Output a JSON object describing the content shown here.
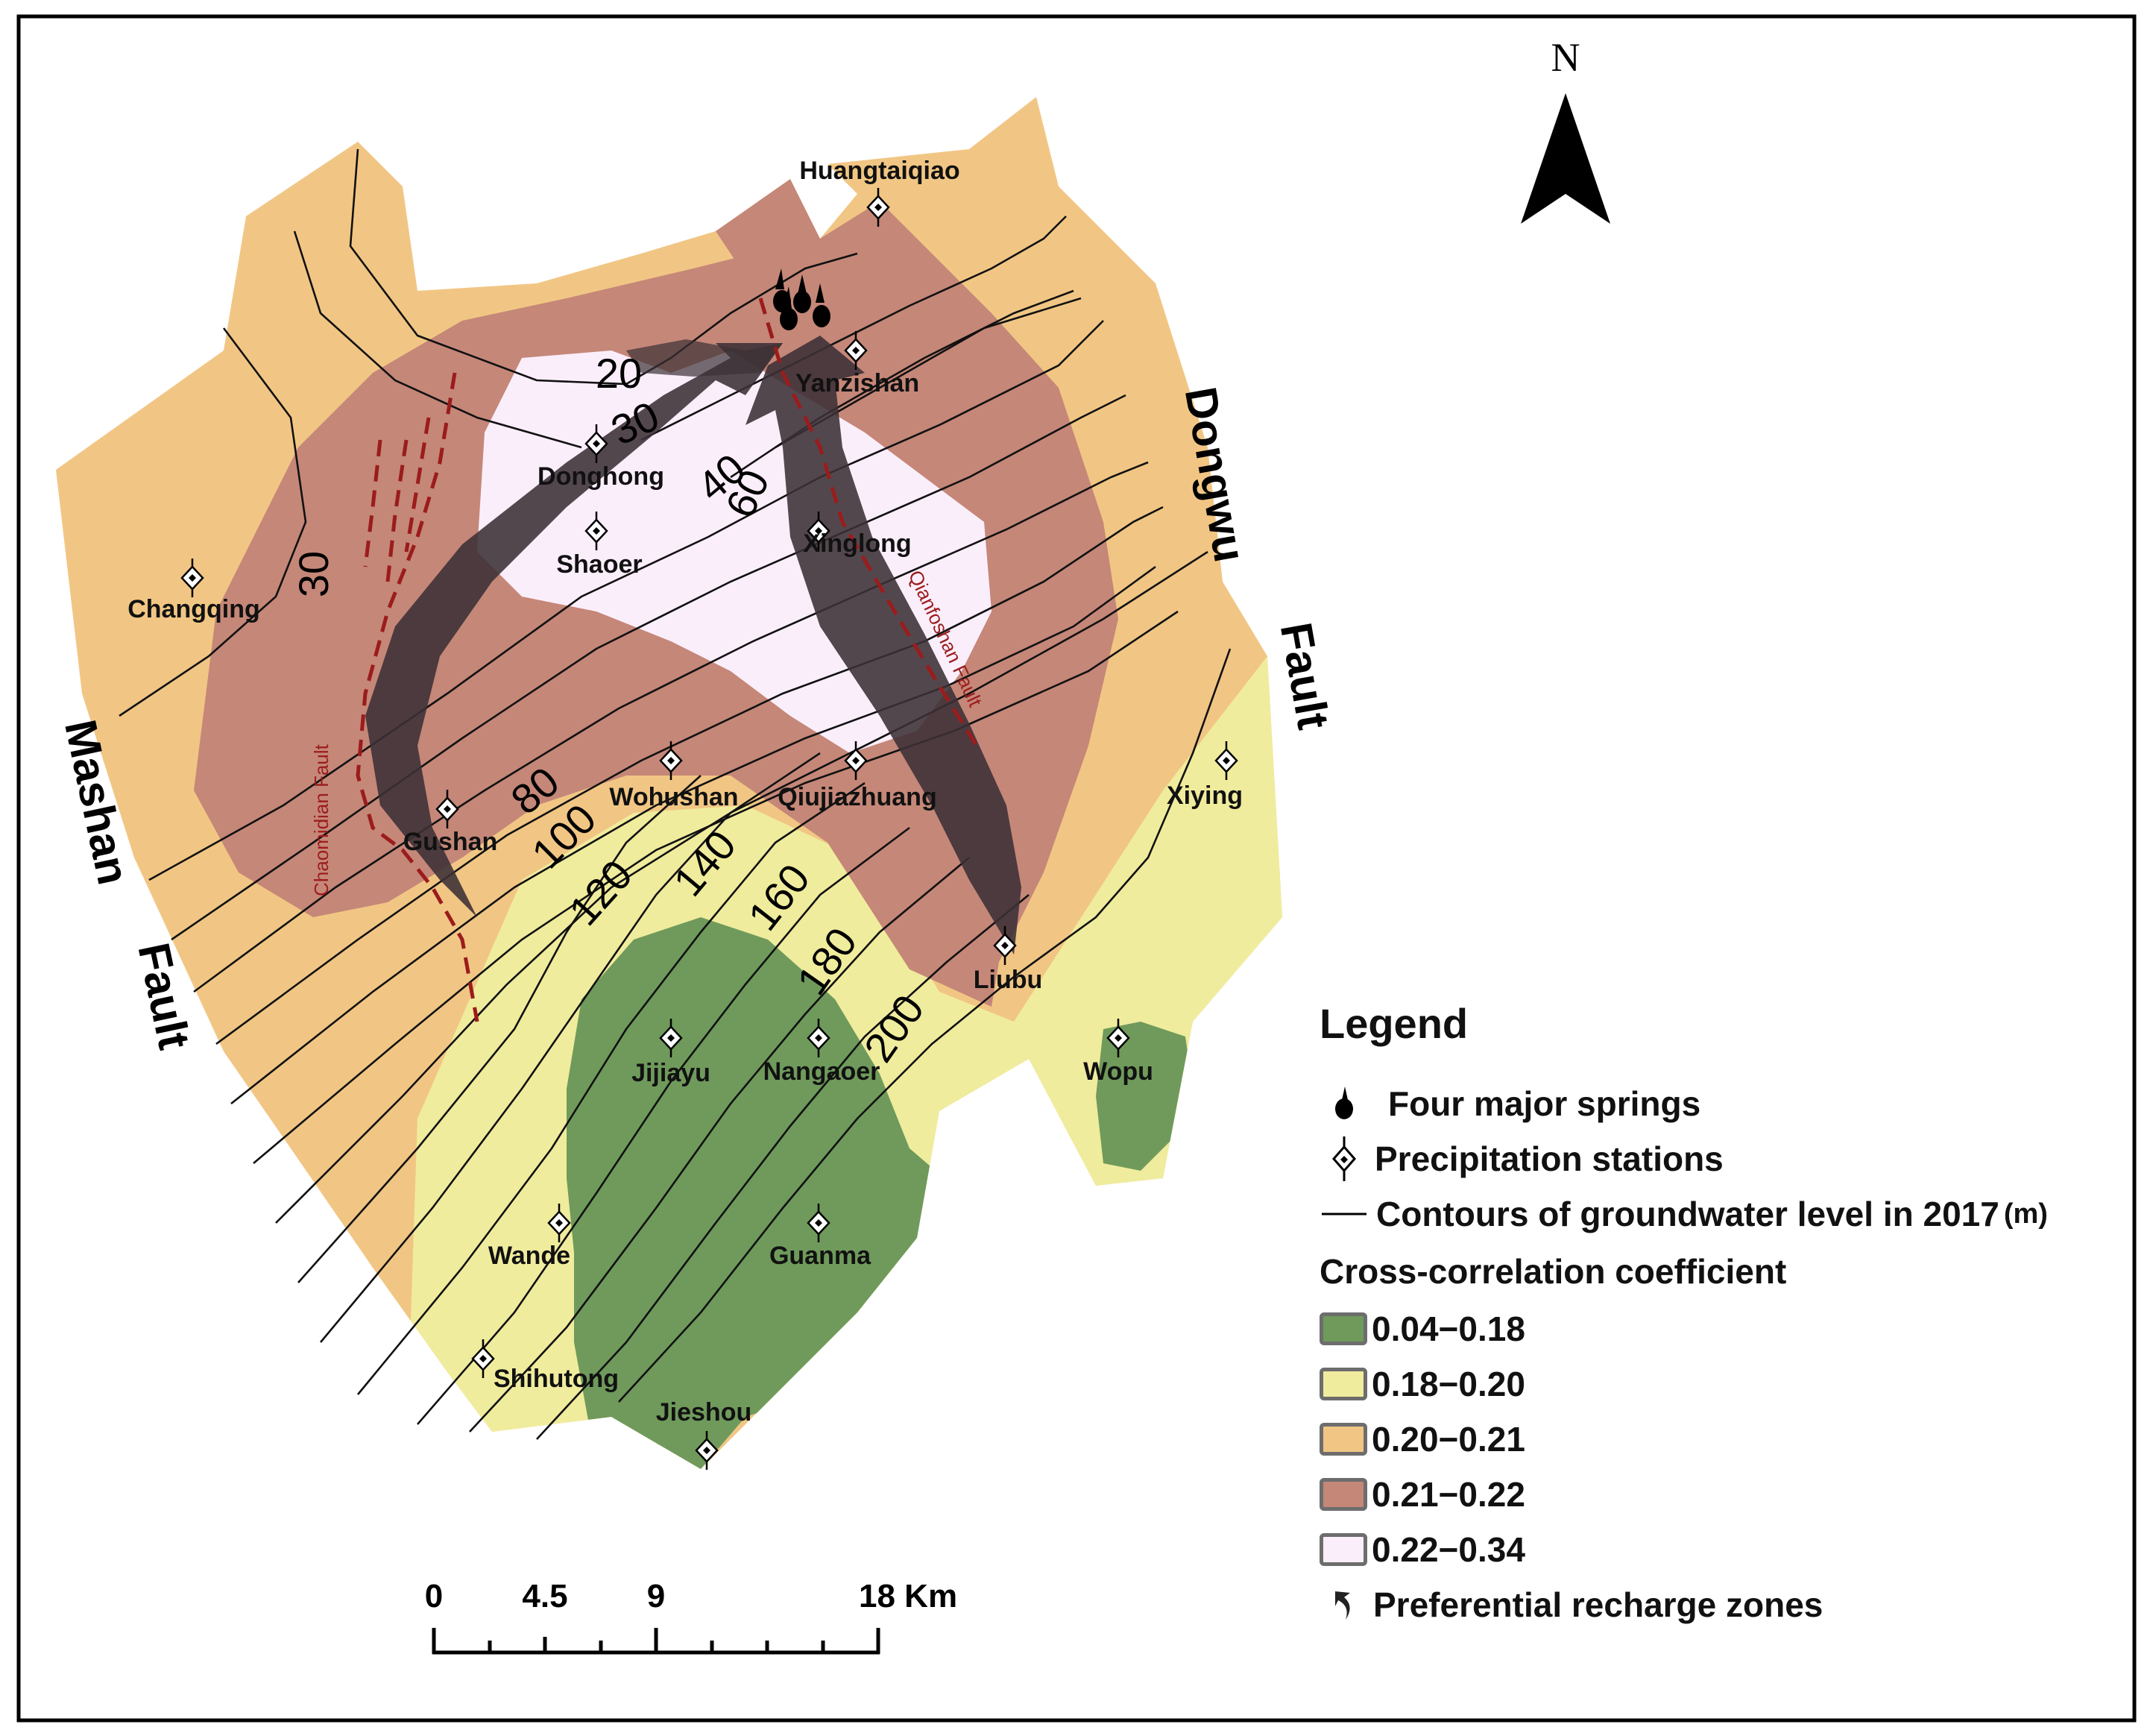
{
  "north": {
    "label": "N"
  },
  "faults": {
    "mashan": [
      "Mashan",
      "Fault"
    ],
    "dongwu": [
      "Dongwu",
      "Fault"
    ],
    "chaomidian": "Chaomidian Fault",
    "qianfoshan": "Qianfoshan Fault"
  },
  "stations": [
    "Huangtaiqiao",
    "Yanzishan",
    "Donghong",
    "Shaoer",
    "Xinglong",
    "Changqing",
    "Wohushan",
    "Qiujiazhuang",
    "Xiying",
    "Gushan",
    "Liubu",
    "Jijiayu",
    "Nangaoer",
    "Wopu",
    "Wande",
    "Guanma",
    "Shihutong",
    "Jieshou"
  ],
  "contour_labels": [
    "20",
    "30",
    "40",
    "60",
    "30",
    "80",
    "100",
    "120",
    "140",
    "160",
    "180",
    "200"
  ],
  "scale_bar": {
    "ticks": [
      "0",
      "4.5",
      "9",
      "18 Km"
    ]
  },
  "legend": {
    "title": "Legend",
    "springs": "Four major springs",
    "stations": "Precipitation stations",
    "contours": "Contours of groundwater level in 2017",
    "contours_unit": "(m)",
    "coef_title": "Cross-correlation coefficient",
    "classes": [
      {
        "range": "0.04−0.18",
        "color": "#6f9a5b"
      },
      {
        "range": "0.18−0.20",
        "color": "#f0ec9d"
      },
      {
        "range": "0.20−0.21",
        "color": "#f1c684"
      },
      {
        "range": "0.21−0.22",
        "color": "#c58778"
      },
      {
        "range": "0.22−0.34",
        "color": "#fbeefb"
      }
    ],
    "recharge": "Preferential recharge zones"
  }
}
